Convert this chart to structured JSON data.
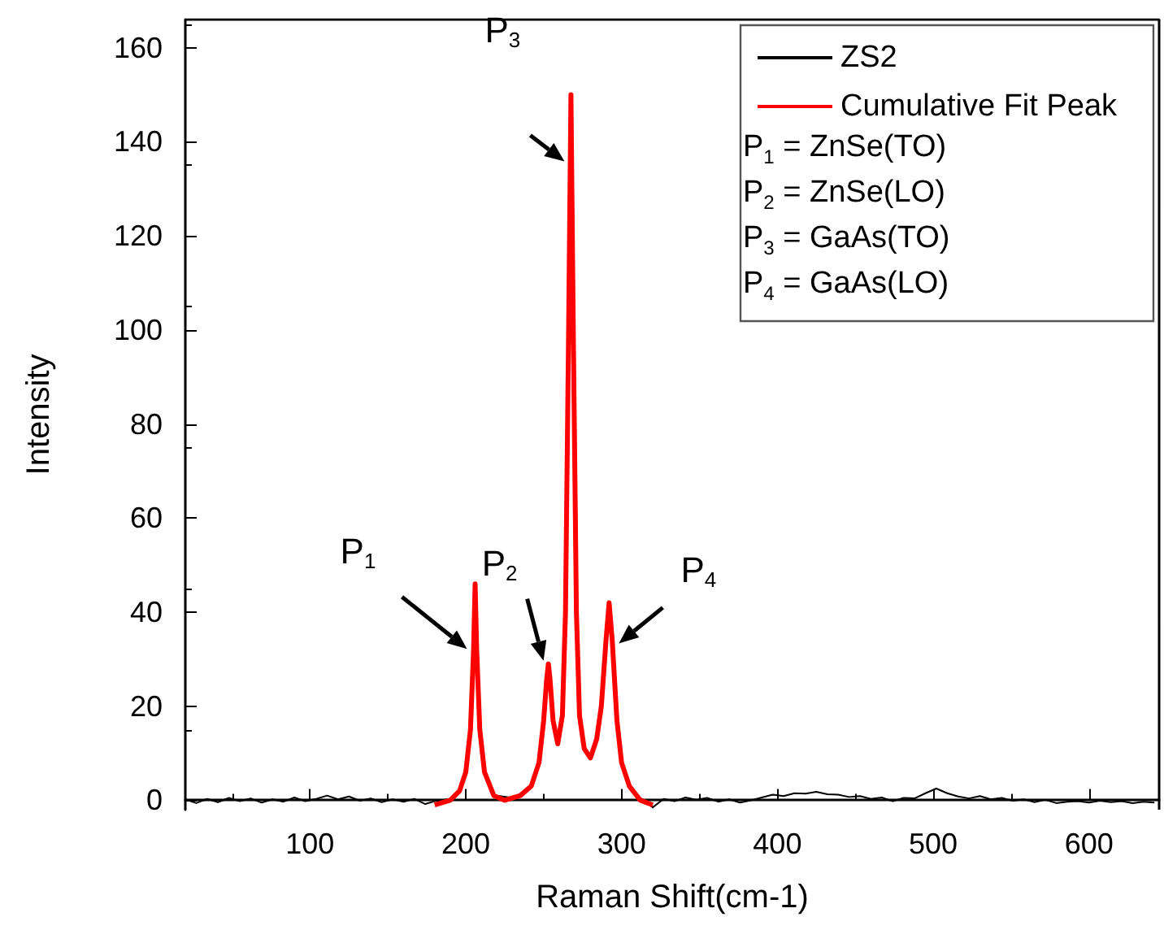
{
  "chart_data": {
    "type": "line",
    "xlabel": "Raman Shift(cm-1)",
    "ylabel": "Intensity",
    "xlim": [
      20,
      645
    ],
    "xticks": [
      100,
      200,
      300,
      400,
      500,
      600
    ],
    "ylim": [
      -2,
      166
    ],
    "yticks": [
      0,
      20,
      40,
      60,
      80,
      100,
      120,
      140,
      160
    ],
    "grid": false,
    "legend": "top right",
    "marker": "none",
    "line_style": "solid",
    "series": [
      {
        "name": "ZS2",
        "color": "#000000",
        "x": [
          20,
          27,
          34,
          41,
          48,
          55,
          62,
          69,
          76,
          83,
          90,
          97,
          104,
          111,
          118,
          125,
          132,
          139,
          146,
          153,
          160,
          167,
          174,
          180,
          190,
          200,
          206,
          212,
          220,
          230,
          240,
          250,
          253,
          256,
          262,
          267.5,
          273,
          280,
          287,
          292,
          297,
          305,
          312,
          320,
          327,
          334,
          341,
          348,
          355,
          362,
          369,
          376,
          383,
          390,
          397,
          404,
          411,
          418,
          425,
          432,
          439,
          446,
          453,
          460,
          467,
          474,
          481,
          488,
          495,
          502,
          509,
          516,
          523,
          530,
          537,
          544,
          551,
          558,
          565,
          572,
          579,
          586,
          593,
          600,
          607,
          614,
          621,
          628,
          635,
          642
        ],
        "values": [
          0.2,
          -0.6,
          0.3,
          -0.4,
          0.5,
          -0.2,
          0.4,
          -0.5,
          0.2,
          -0.3,
          0.6,
          -0.2,
          0.3,
          1.0,
          0.2,
          0.8,
          -0.1,
          0.4,
          -0.4,
          0.2,
          -0.3,
          0.3,
          -0.8,
          -0.2,
          0.3,
          null,
          null,
          null,
          1,
          0.5,
          null,
          null,
          null,
          null,
          null,
          null,
          null,
          null,
          null,
          null,
          null,
          null,
          0.5,
          -1.5,
          0.3,
          -0.2,
          0.6,
          0.1,
          0.5,
          -0.3,
          0.2,
          -0.5,
          0,
          0.6,
          1.2,
          0.9,
          1.5,
          1.4,
          1.8,
          1.3,
          1.2,
          0.7,
          0.9,
          0.3,
          0.6,
          -0.2,
          0.5,
          0.4,
          1.5,
          2.5,
          1.5,
          0.8,
          0.4,
          0.9,
          0.2,
          0.5,
          -0.1,
          0.2,
          -0.4,
          0.1,
          -0.6,
          -0.3,
          -0.2,
          -0.5,
          -0.1,
          -0.4,
          -0.2,
          -0.6,
          -0.3,
          -0.5
        ]
      },
      {
        "name": "Cumulative Fit Peak",
        "color": "#ff0000",
        "x": [
          180,
          190,
          196,
          200,
          203,
          205,
          206,
          207,
          209,
          212,
          218,
          225,
          235,
          242,
          247,
          250,
          252,
          253,
          254,
          256,
          259,
          262,
          264,
          266,
          267.5,
          269,
          271,
          273,
          276,
          280,
          284,
          287,
          290,
          292,
          294,
          297,
          300,
          305,
          312,
          320
        ],
        "values": [
          -1,
          0,
          2,
          6,
          15,
          32,
          46,
          32,
          15,
          6,
          1,
          0,
          1,
          3,
          8,
          17,
          26,
          29,
          26,
          17,
          12,
          18,
          40,
          100,
          150,
          100,
          40,
          18,
          11,
          9,
          13,
          20,
          34,
          42,
          34,
          17,
          8,
          3,
          0,
          -1
        ]
      }
    ],
    "annotations": [
      {
        "text": "P$_{1}$",
        "x": 206,
        "y": 46
      },
      {
        "text": "P$_{2}$",
        "x": 253,
        "y": 29
      },
      {
        "text": "P$_{3}$",
        "x": 267.5,
        "y": 150
      },
      {
        "text": "P$_{4}$",
        "x": 292,
        "y": 42
      },
      "P$_{1}$ = ZnSe(TO)",
      "P$_{2}$ = ZnSe(LO)",
      "P$_{3}$ = GaAs(TO)",
      "P$_{4}$ = GaAs(LO)"
    ]
  }
}
